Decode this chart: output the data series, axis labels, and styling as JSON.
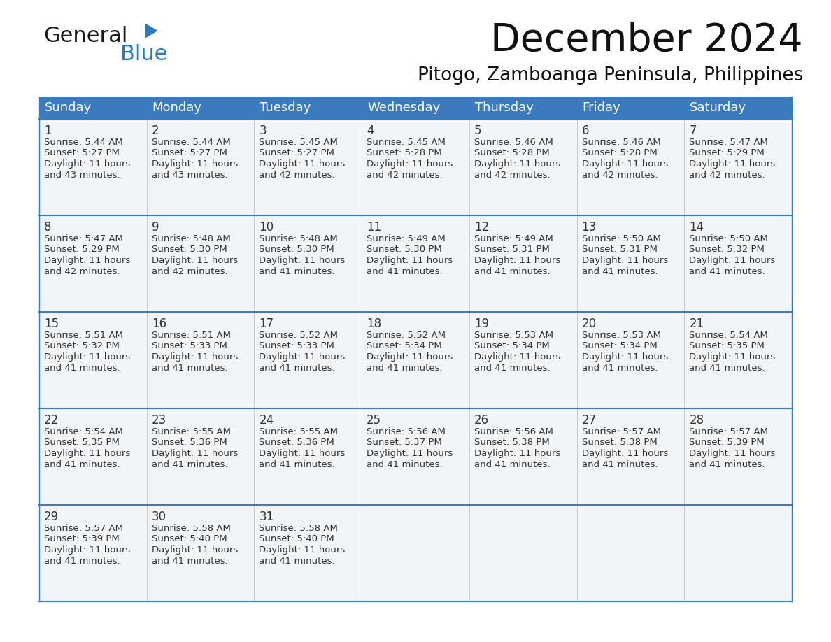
{
  "title": "December 2024",
  "subtitle": "Pitogo, Zamboanga Peninsula, Philippines",
  "header_color": "#3a7abf",
  "header_text_color": "#ffffff",
  "border_color": "#3a7abf",
  "cell_bg_color": "#f2f5f8",
  "empty_cell_bg": "#f2f5f8",
  "text_color": "#333333",
  "days_of_week": [
    "Sunday",
    "Monday",
    "Tuesday",
    "Wednesday",
    "Thursday",
    "Friday",
    "Saturday"
  ],
  "weeks": [
    [
      {
        "day": 1,
        "sunrise": "5:44 AM",
        "sunset": "5:27 PM",
        "daylight_hours": 11,
        "daylight_minutes": 43
      },
      {
        "day": 2,
        "sunrise": "5:44 AM",
        "sunset": "5:27 PM",
        "daylight_hours": 11,
        "daylight_minutes": 43
      },
      {
        "day": 3,
        "sunrise": "5:45 AM",
        "sunset": "5:27 PM",
        "daylight_hours": 11,
        "daylight_minutes": 42
      },
      {
        "day": 4,
        "sunrise": "5:45 AM",
        "sunset": "5:28 PM",
        "daylight_hours": 11,
        "daylight_minutes": 42
      },
      {
        "day": 5,
        "sunrise": "5:46 AM",
        "sunset": "5:28 PM",
        "daylight_hours": 11,
        "daylight_minutes": 42
      },
      {
        "day": 6,
        "sunrise": "5:46 AM",
        "sunset": "5:28 PM",
        "daylight_hours": 11,
        "daylight_minutes": 42
      },
      {
        "day": 7,
        "sunrise": "5:47 AM",
        "sunset": "5:29 PM",
        "daylight_hours": 11,
        "daylight_minutes": 42
      }
    ],
    [
      {
        "day": 8,
        "sunrise": "5:47 AM",
        "sunset": "5:29 PM",
        "daylight_hours": 11,
        "daylight_minutes": 42
      },
      {
        "day": 9,
        "sunrise": "5:48 AM",
        "sunset": "5:30 PM",
        "daylight_hours": 11,
        "daylight_minutes": 42
      },
      {
        "day": 10,
        "sunrise": "5:48 AM",
        "sunset": "5:30 PM",
        "daylight_hours": 11,
        "daylight_minutes": 41
      },
      {
        "day": 11,
        "sunrise": "5:49 AM",
        "sunset": "5:30 PM",
        "daylight_hours": 11,
        "daylight_minutes": 41
      },
      {
        "day": 12,
        "sunrise": "5:49 AM",
        "sunset": "5:31 PM",
        "daylight_hours": 11,
        "daylight_minutes": 41
      },
      {
        "day": 13,
        "sunrise": "5:50 AM",
        "sunset": "5:31 PM",
        "daylight_hours": 11,
        "daylight_minutes": 41
      },
      {
        "day": 14,
        "sunrise": "5:50 AM",
        "sunset": "5:32 PM",
        "daylight_hours": 11,
        "daylight_minutes": 41
      }
    ],
    [
      {
        "day": 15,
        "sunrise": "5:51 AM",
        "sunset": "5:32 PM",
        "daylight_hours": 11,
        "daylight_minutes": 41
      },
      {
        "day": 16,
        "sunrise": "5:51 AM",
        "sunset": "5:33 PM",
        "daylight_hours": 11,
        "daylight_minutes": 41
      },
      {
        "day": 17,
        "sunrise": "5:52 AM",
        "sunset": "5:33 PM",
        "daylight_hours": 11,
        "daylight_minutes": 41
      },
      {
        "day": 18,
        "sunrise": "5:52 AM",
        "sunset": "5:34 PM",
        "daylight_hours": 11,
        "daylight_minutes": 41
      },
      {
        "day": 19,
        "sunrise": "5:53 AM",
        "sunset": "5:34 PM",
        "daylight_hours": 11,
        "daylight_minutes": 41
      },
      {
        "day": 20,
        "sunrise": "5:53 AM",
        "sunset": "5:34 PM",
        "daylight_hours": 11,
        "daylight_minutes": 41
      },
      {
        "day": 21,
        "sunrise": "5:54 AM",
        "sunset": "5:35 PM",
        "daylight_hours": 11,
        "daylight_minutes": 41
      }
    ],
    [
      {
        "day": 22,
        "sunrise": "5:54 AM",
        "sunset": "5:35 PM",
        "daylight_hours": 11,
        "daylight_minutes": 41
      },
      {
        "day": 23,
        "sunrise": "5:55 AM",
        "sunset": "5:36 PM",
        "daylight_hours": 11,
        "daylight_minutes": 41
      },
      {
        "day": 24,
        "sunrise": "5:55 AM",
        "sunset": "5:36 PM",
        "daylight_hours": 11,
        "daylight_minutes": 41
      },
      {
        "day": 25,
        "sunrise": "5:56 AM",
        "sunset": "5:37 PM",
        "daylight_hours": 11,
        "daylight_minutes": 41
      },
      {
        "day": 26,
        "sunrise": "5:56 AM",
        "sunset": "5:38 PM",
        "daylight_hours": 11,
        "daylight_minutes": 41
      },
      {
        "day": 27,
        "sunrise": "5:57 AM",
        "sunset": "5:38 PM",
        "daylight_hours": 11,
        "daylight_minutes": 41
      },
      {
        "day": 28,
        "sunrise": "5:57 AM",
        "sunset": "5:39 PM",
        "daylight_hours": 11,
        "daylight_minutes": 41
      }
    ],
    [
      {
        "day": 29,
        "sunrise": "5:57 AM",
        "sunset": "5:39 PM",
        "daylight_hours": 11,
        "daylight_minutes": 41
      },
      {
        "day": 30,
        "sunrise": "5:58 AM",
        "sunset": "5:40 PM",
        "daylight_hours": 11,
        "daylight_minutes": 41
      },
      {
        "day": 31,
        "sunrise": "5:58 AM",
        "sunset": "5:40 PM",
        "daylight_hours": 11,
        "daylight_minutes": 41
      },
      null,
      null,
      null,
      null
    ]
  ],
  "logo_general_color": "#1a1a1a",
  "logo_blue_color": "#2a7abf",
  "logo_triangle_color": "#2a7abf",
  "fig_width": 11.88,
  "fig_height": 9.18,
  "dpi": 100
}
